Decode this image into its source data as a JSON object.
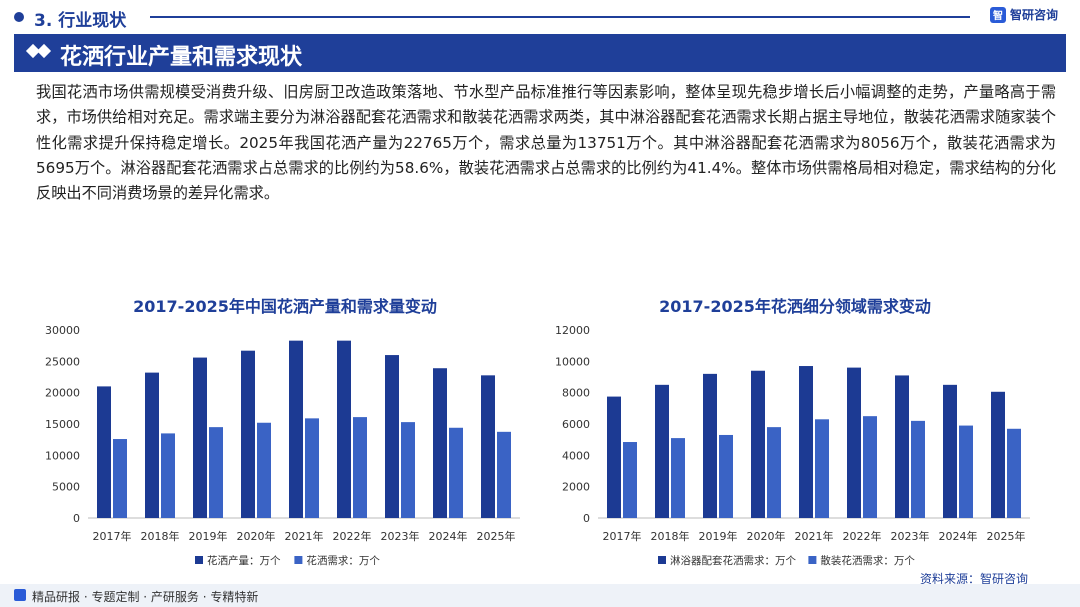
{
  "header": {
    "section": "3. 行业现状",
    "brand": "智研咨询",
    "brand_logo": "智",
    "banner_title": "花洒行业产量和需求现状"
  },
  "paragraph": "我国花洒市场供需规模受消费升级、旧房厨卫改造政策落地、节水型产品标准推行等因素影响，整体呈现先稳步增长后小幅调整的走势，产量略高于需求，市场供给相对充足。需求端主要分为淋浴器配套花洒需求和散装花洒需求两类，其中淋浴器配套花洒需求长期占据主导地位，散装花洒需求随家装个性化需求提升保持稳定增长。2025年我国花洒产量为22765万个，需求总量为13751万个。其中淋浴器配套花洒需求为8056万个，散装花洒需求为5695万个。淋浴器配套花洒需求占总需求的比例约为58.6%，散装花洒需求占总需求的比例约为41.4%。整体市场供需格局相对稳定，需求结构的分化反映出不同消费场景的差异化需求。",
  "colors": {
    "primary": "#1f3f99",
    "series_dark": "#1c3a93",
    "series_light": "#3a63c5"
  },
  "chart_data": [
    {
      "type": "bar",
      "title": "2017-2025年中国花洒产量和需求量变动",
      "categories": [
        "2017年",
        "2018年",
        "2019年",
        "2020年",
        "2021年",
        "2022年",
        "2023年",
        "2024年",
        "2025年"
      ],
      "series": [
        {
          "name": "花洒产量：万个",
          "values": [
            21000,
            23200,
            25600,
            26700,
            28300,
            28300,
            26000,
            23900,
            22765
          ]
        },
        {
          "name": "花洒需求：万个",
          "values": [
            12600,
            13500,
            14500,
            15200,
            15900,
            16100,
            15300,
            14400,
            13751
          ]
        }
      ],
      "yticks": [
        0,
        5000,
        10000,
        15000,
        20000,
        25000,
        30000
      ],
      "ylim": [
        0,
        30000
      ],
      "legend": "bottom"
    },
    {
      "type": "bar",
      "title": "2017-2025年花洒细分领域需求变动",
      "categories": [
        "2017年",
        "2018年",
        "2019年",
        "2020年",
        "2021年",
        "2022年",
        "2023年",
        "2024年",
        "2025年"
      ],
      "series": [
        {
          "name": "淋浴器配套花洒需求：万个",
          "values": [
            7750,
            8500,
            9200,
            9400,
            9700,
            9600,
            9100,
            8500,
            8056
          ]
        },
        {
          "name": "散装花洒需求：万个",
          "values": [
            4850,
            5100,
            5300,
            5800,
            6300,
            6500,
            6200,
            5900,
            5695
          ]
        }
      ],
      "yticks": [
        0,
        2000,
        4000,
        6000,
        8000,
        10000,
        12000
      ],
      "ylim": [
        0,
        12000
      ],
      "legend": "bottom"
    }
  ],
  "footer": {
    "text": "精品研报 · 专题定制 · 产研服务 · 专精特新",
    "source": "资料来源：智研咨询"
  }
}
